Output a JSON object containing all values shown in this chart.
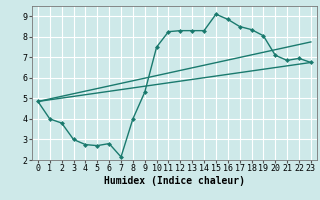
{
  "background_color": "#cee9e9",
  "grid_color": "#ffffff",
  "line_color": "#1a7a6e",
  "line_width": 1.0,
  "marker": "D",
  "marker_size": 2.5,
  "xlabel": "Humidex (Indice chaleur)",
  "xlabel_fontsize": 7,
  "tick_fontsize": 6,
  "xlim": [
    -0.5,
    23.5
  ],
  "ylim": [
    2,
    9.5
  ],
  "xticks": [
    0,
    1,
    2,
    3,
    4,
    5,
    6,
    7,
    8,
    9,
    10,
    11,
    12,
    13,
    14,
    15,
    16,
    17,
    18,
    19,
    20,
    21,
    22,
    23
  ],
  "yticks": [
    2,
    3,
    4,
    5,
    6,
    7,
    8,
    9
  ],
  "line1_x": [
    0,
    1,
    2,
    3,
    4,
    5,
    6,
    7,
    8,
    9,
    10,
    11,
    12,
    13,
    14,
    15,
    16,
    17,
    18,
    19,
    20,
    21,
    22,
    23
  ],
  "line1_y": [
    4.85,
    4.0,
    3.8,
    3.0,
    2.75,
    2.7,
    2.8,
    2.15,
    4.0,
    5.3,
    7.5,
    8.25,
    8.3,
    8.3,
    8.3,
    9.1,
    8.85,
    8.5,
    8.35,
    8.05,
    7.1,
    6.85,
    6.95,
    6.75
  ],
  "line2_x": [
    0,
    23
  ],
  "line2_y": [
    4.85,
    7.75
  ],
  "line3_x": [
    0,
    23
  ],
  "line3_y": [
    4.85,
    6.75
  ]
}
